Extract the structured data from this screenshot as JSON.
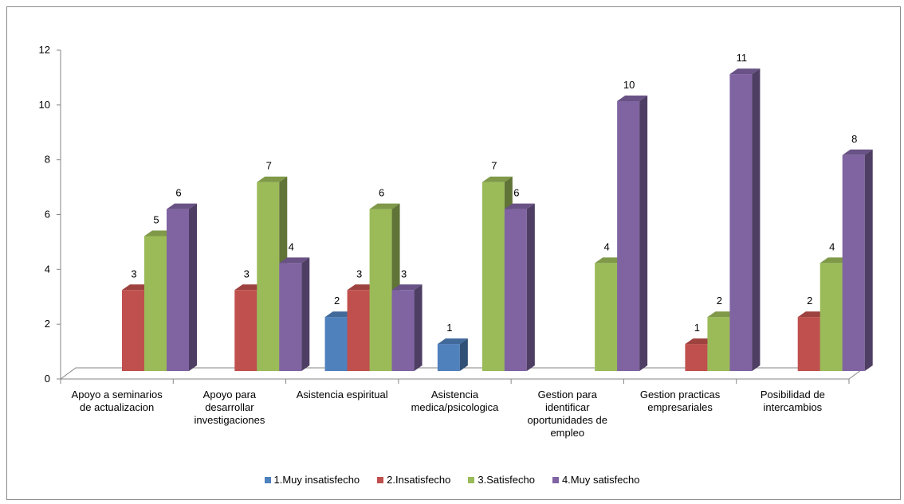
{
  "chart_data": {
    "type": "bar",
    "style": "3d-clustered-column",
    "categories": [
      "Apoyo a seminarios de actualizacion",
      "Apoyo para desarrollar investigaciones",
      "Asistencia espiritual",
      "Asistencia medica/psicologica",
      "Gestion para identificar oportunidades de empleo",
      "Gestion practicas empresariales",
      "Posibilidad de intercambios"
    ],
    "series": [
      {
        "name": "1.Muy insatisfecho",
        "color": "#4F81BD",
        "values": [
          null,
          null,
          2,
          1,
          null,
          null,
          null
        ]
      },
      {
        "name": "2.Insatisfecho",
        "color": "#C0504D",
        "values": [
          3,
          3,
          3,
          null,
          null,
          1,
          2
        ]
      },
      {
        "name": "3.Satisfecho",
        "color": "#9BBB59",
        "values": [
          5,
          7,
          6,
          7,
          4,
          2,
          4
        ]
      },
      {
        "name": "4.Muy satisfecho",
        "color": "#8064A2",
        "values": [
          6,
          4,
          3,
          6,
          10,
          11,
          8
        ]
      }
    ],
    "yticks": [
      "0",
      "2",
      "4",
      "6",
      "8",
      "10",
      "12"
    ],
    "ylim": [
      0,
      12
    ],
    "grid": false,
    "legend_position": "bottom",
    "data_labels": true
  }
}
